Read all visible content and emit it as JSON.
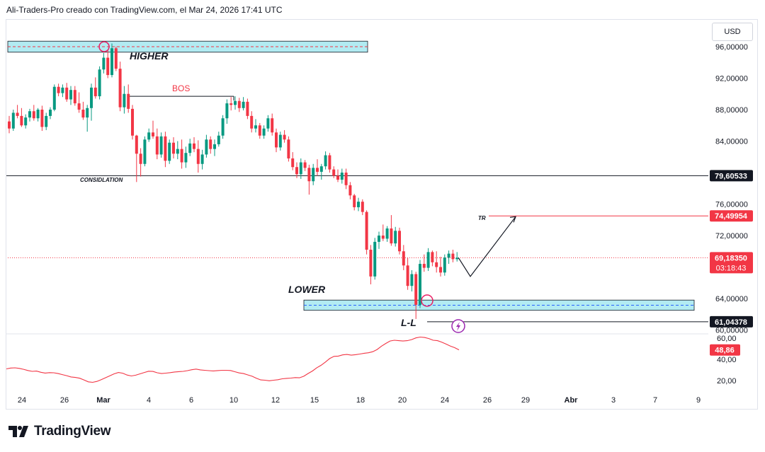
{
  "header": {
    "title": "Ali-Traders-Pro creado con TradingView.com, el Mar 24, 2026 17:41 UTC"
  },
  "currency_button": {
    "label": "USD"
  },
  "footer": {
    "brand": "TradingView"
  },
  "colors": {
    "bull": "#089981",
    "bear": "#f23645",
    "zone_fill": "#b2ebf2",
    "zone_border": "#131722",
    "rsi": "#f23645"
  },
  "icons": {
    "brand_logo": "tradingview-logo-icon",
    "alert": "lightning-icon"
  },
  "chart_data": {
    "type": "candlestick",
    "price_axis": {
      "min": 58,
      "max": 98,
      "ticks": [
        96,
        92,
        88,
        84,
        76,
        72,
        64,
        60
      ],
      "tick_labels": [
        "96,00000",
        "92,00000",
        "88,00000",
        "84,00000",
        "76,00000",
        "72,00000",
        "64,00000",
        "60,00000"
      ]
    },
    "time_axis": {
      "labels": [
        "24",
        "26",
        "Mar",
        "4",
        "6",
        "10",
        "12",
        "15",
        "18",
        "20",
        "24",
        "26",
        "29",
        "Abr",
        "3",
        "7",
        "9"
      ]
    },
    "price_labels": [
      {
        "value": 79.60533,
        "text": "79,60533",
        "bg": "#131722",
        "fg": "#ffffff"
      },
      {
        "value": 74.49954,
        "text": "74,49954",
        "bg": "#f23645",
        "fg": "#ffffff"
      },
      {
        "value": 69.1835,
        "text": "69,18350",
        "sub": "03:18:43",
        "bg": "#f23645",
        "fg": "#ffffff"
      },
      {
        "value": 61.04378,
        "text": "61,04378",
        "bg": "#131722",
        "fg": "#ffffff"
      }
    ],
    "current_price": 69.1835,
    "annotations": {
      "higher": "HIGHER",
      "lower": "LOWER",
      "bos": "BOS",
      "consolidation": "CONSIDLATION",
      "tr": "TR",
      "ll": "L-L"
    },
    "levels": {
      "higher_zone": [
        95.3,
        96.7
      ],
      "lower_zone": [
        62.5,
        63.8
      ],
      "bos": 89.7,
      "consolidation": 79.60533,
      "tr": 74.49954,
      "ll": 61.04378
    },
    "projection": [
      [
        69.0,
        66.8
      ],
      [
        74.5,
        74.4
      ]
    ],
    "candles": [
      [
        86.5,
        87.2,
        85.0,
        85.6
      ],
      [
        85.6,
        88.0,
        85.3,
        87.6
      ],
      [
        87.6,
        88.6,
        86.9,
        87.2
      ],
      [
        87.2,
        88.2,
        85.8,
        86.0
      ],
      [
        86.0,
        87.4,
        85.6,
        87.0
      ],
      [
        87.0,
        88.1,
        86.5,
        87.8
      ],
      [
        87.8,
        88.6,
        86.6,
        86.9
      ],
      [
        86.9,
        88.2,
        86.5,
        88.0
      ],
      [
        88.0,
        88.5,
        85.3,
        85.8
      ],
      [
        85.8,
        87.6,
        85.4,
        87.2
      ],
      [
        87.2,
        88.3,
        86.8,
        88.0
      ],
      [
        88.0,
        91.2,
        87.8,
        90.9
      ],
      [
        90.9,
        91.3,
        89.7,
        90.1
      ],
      [
        90.1,
        91.2,
        89.6,
        90.8
      ],
      [
        90.8,
        91.4,
        89.0,
        89.3
      ],
      [
        89.3,
        91.0,
        88.6,
        90.5
      ],
      [
        90.5,
        91.0,
        88.5,
        88.8
      ],
      [
        88.8,
        90.2,
        87.6,
        88.0
      ],
      [
        88.0,
        89.0,
        86.7,
        87.0
      ],
      [
        87.0,
        88.6,
        85.2,
        88.2
      ],
      [
        88.2,
        91.3,
        86.6,
        90.8
      ],
      [
        90.8,
        92.1,
        89.4,
        89.7
      ],
      [
        89.7,
        93.5,
        89.3,
        93.1
      ],
      [
        93.1,
        95.2,
        92.6,
        94.6
      ],
      [
        94.6,
        95.6,
        92.0,
        92.4
      ],
      [
        92.4,
        96.4,
        92.1,
        95.8
      ],
      [
        95.8,
        96.0,
        92.9,
        93.2
      ],
      [
        93.2,
        94.1,
        87.8,
        88.3
      ],
      [
        88.3,
        91.0,
        87.5,
        90.0
      ],
      [
        90.0,
        91.2,
        87.6,
        88.1
      ],
      [
        88.1,
        88.6,
        84.2,
        84.7
      ],
      [
        84.7,
        84.8,
        78.8,
        82.4
      ],
      [
        82.4,
        83.1,
        79.5,
        81.1
      ],
      [
        81.1,
        84.6,
        80.8,
        84.2
      ],
      [
        84.2,
        85.6,
        83.9,
        85.1
      ],
      [
        85.1,
        86.6,
        84.3,
        84.6
      ],
      [
        84.6,
        85.6,
        81.7,
        82.3
      ],
      [
        82.3,
        85.1,
        81.9,
        84.6
      ],
      [
        84.6,
        85.2,
        80.7,
        81.5
      ],
      [
        81.5,
        84.2,
        81.1,
        83.8
      ],
      [
        83.8,
        84.5,
        81.8,
        82.4
      ],
      [
        82.4,
        84.0,
        81.7,
        83.0
      ],
      [
        83.0,
        84.2,
        80.5,
        81.3
      ],
      [
        81.3,
        83.3,
        80.6,
        82.5
      ],
      [
        82.5,
        84.3,
        82.1,
        83.7
      ],
      [
        83.7,
        84.5,
        82.6,
        83.0
      ],
      [
        83.0,
        84.1,
        80.0,
        81.1
      ],
      [
        81.1,
        82.9,
        80.4,
        82.3
      ],
      [
        82.3,
        84.8,
        81.9,
        84.2
      ],
      [
        84.2,
        84.6,
        82.4,
        83.0
      ],
      [
        83.0,
        84.2,
        82.1,
        83.6
      ],
      [
        83.6,
        85.2,
        83.3,
        84.7
      ],
      [
        84.7,
        87.3,
        84.3,
        86.9
      ],
      [
        86.9,
        89.3,
        86.2,
        88.8
      ],
      [
        88.8,
        89.6,
        87.9,
        88.6
      ],
      [
        88.6,
        89.7,
        88.0,
        89.1
      ],
      [
        89.1,
        89.5,
        87.7,
        88.2
      ],
      [
        88.2,
        89.6,
        87.9,
        89.0
      ],
      [
        89.0,
        89.4,
        86.8,
        87.2
      ],
      [
        87.2,
        87.8,
        85.1,
        85.6
      ],
      [
        85.6,
        86.8,
        85.1,
        86.0
      ],
      [
        86.0,
        86.3,
        84.3,
        84.7
      ],
      [
        84.7,
        86.0,
        84.3,
        85.6
      ],
      [
        85.6,
        87.3,
        85.2,
        86.9
      ],
      [
        86.9,
        87.5,
        84.7,
        85.1
      ],
      [
        85.1,
        85.6,
        82.6,
        83.2
      ],
      [
        83.2,
        85.2,
        82.8,
        84.8
      ],
      [
        84.8,
        85.4,
        83.8,
        84.2
      ],
      [
        84.2,
        84.6,
        81.4,
        81.8
      ],
      [
        81.8,
        82.6,
        80.3,
        80.7
      ],
      [
        80.7,
        81.3,
        79.3,
        79.8
      ],
      [
        79.8,
        81.8,
        79.2,
        81.3
      ],
      [
        81.3,
        81.6,
        80.2,
        80.6
      ],
      [
        80.6,
        81.0,
        77.2,
        78.9
      ],
      [
        78.9,
        81.1,
        78.4,
        80.6
      ],
      [
        80.6,
        81.7,
        79.6,
        80.1
      ],
      [
        80.1,
        81.1,
        79.1,
        80.8
      ],
      [
        80.8,
        82.7,
        80.4,
        82.2
      ],
      [
        82.2,
        82.5,
        80.0,
        80.4
      ],
      [
        80.4,
        80.8,
        79.3,
        79.6
      ],
      [
        79.6,
        80.4,
        78.8,
        79.1
      ],
      [
        79.1,
        80.5,
        78.6,
        80.0
      ],
      [
        80.0,
        80.5,
        77.9,
        78.4
      ],
      [
        78.4,
        78.8,
        76.6,
        77.1
      ],
      [
        77.1,
        77.3,
        75.2,
        75.6
      ],
      [
        75.6,
        76.8,
        75.1,
        76.3
      ],
      [
        76.3,
        76.6,
        74.6,
        75.0
      ],
      [
        75.0,
        75.2,
        69.6,
        70.2
      ],
      [
        70.2,
        70.8,
        65.8,
        66.8
      ],
      [
        66.8,
        71.7,
        66.4,
        71.2
      ],
      [
        71.2,
        72.5,
        70.3,
        72.0
      ],
      [
        72.0,
        73.4,
        71.3,
        71.6
      ],
      [
        71.6,
        73.2,
        71.2,
        72.9
      ],
      [
        72.9,
        74.6,
        70.7,
        71.0
      ],
      [
        71.0,
        73.1,
        70.6,
        72.6
      ],
      [
        72.6,
        73.0,
        69.6,
        70.0
      ],
      [
        70.0,
        70.8,
        67.6,
        68.2
      ],
      [
        68.2,
        69.2,
        65.1,
        65.6
      ],
      [
        65.6,
        67.6,
        64.9,
        67.1
      ],
      [
        67.1,
        67.4,
        61.4,
        63.2
      ],
      [
        63.2,
        68.9,
        62.8,
        68.4
      ],
      [
        68.4,
        69.6,
        67.4,
        67.9
      ],
      [
        67.9,
        70.4,
        67.5,
        69.9
      ],
      [
        69.9,
        70.1,
        68.1,
        68.6
      ],
      [
        68.6,
        70.0,
        67.3,
        68.0
      ],
      [
        68.0,
        69.3,
        66.8,
        67.3
      ],
      [
        67.3,
        69.6,
        66.9,
        69.2
      ],
      [
        69.2,
        70.1,
        68.4,
        69.7
      ],
      [
        69.7,
        70.2,
        68.6,
        69.0
      ],
      [
        69.0,
        69.9,
        68.7,
        69.18
      ]
    ],
    "rsi": {
      "label": "48,86",
      "value": 48.86,
      "ticks": [
        60,
        40,
        20
      ],
      "tick_labels": [
        "60,00",
        "40,00",
        "20,00"
      ],
      "values": [
        31,
        31.8,
        32,
        31.5,
        30.6,
        29.5,
        28.7,
        28.9,
        27.8,
        27.1,
        27.5,
        27.3,
        26.6,
        25.6,
        24.6,
        23.4,
        22.9,
        22.2,
        20.6,
        18.8,
        18.3,
        19.2,
        20.8,
        22.7,
        24.5,
        26.3,
        27.6,
        26.9,
        25.2,
        24.3,
        25.1,
        26.3,
        27.6,
        28.8,
        28.6,
        27.3,
        26.6,
        27.0,
        27.5,
        28.1,
        28.4,
        28.7,
        29.3,
        30.2,
        30.8,
        30.1,
        29.7,
        29.3,
        29.1,
        29.4,
        29.7,
        29.7,
        29.5,
        28.3,
        27.2,
        26.6,
        25.3,
        24.1,
        22.2,
        20.6,
        20.3,
        19.8,
        20.3,
        20.8,
        21.7,
        22.1,
        22.3,
        22.8,
        22.6,
        24.1,
        26.7,
        29.0,
        32.1,
        34.4,
        37.4,
        40.7,
        42.8,
        43.1,
        44.2,
        44.6,
        43.9,
        44.4,
        45.0,
        45.7,
        46.2,
        47.2,
        49.3,
        52.4,
        54.9,
        57.3,
        58.0,
        57.6,
        57.3,
        57.6,
        58.6,
        60.2,
        61.0,
        60.6,
        59.6,
        58.0,
        57.6,
        56.2,
        54.4,
        52.5,
        51.0,
        48.9
      ]
    }
  }
}
